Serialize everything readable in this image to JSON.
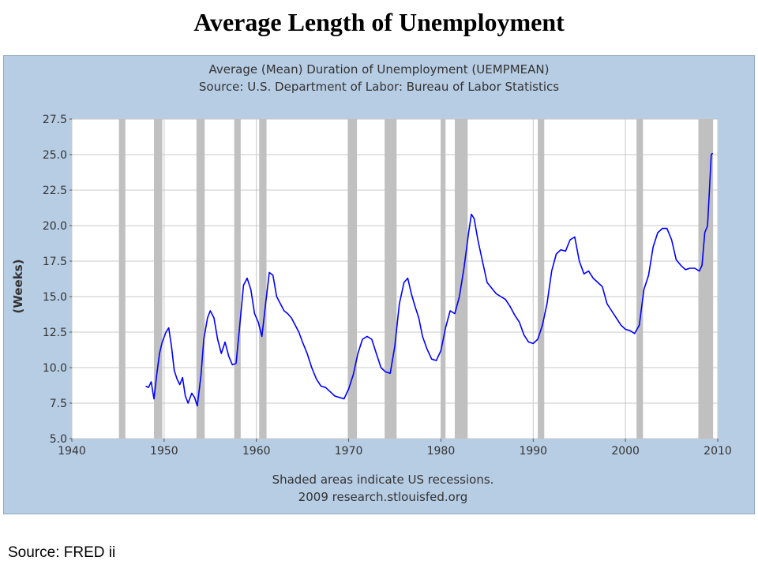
{
  "slide_title": "Average Length of Unemployment",
  "source_note": "Source: FRED ii",
  "colors": {
    "frame_background": "#b7cde4",
    "plot_background": "#ffffff",
    "series_line": "#0000ff",
    "recession_band": "#c0c0c0",
    "grid": "#c8c8c8"
  },
  "chart_data": {
    "type": "line",
    "title": "Average (Mean) Duration of Unemployment (UEMPMEAN)",
    "subtitle": "Source: U.S. Department of Labor: Bureau of Labor Statistics",
    "xlabel": "",
    "ylabel": "(Weeks)",
    "xlim": [
      1940,
      2010
    ],
    "ylim": [
      5.0,
      27.5
    ],
    "x_ticks": [
      "1940",
      "1950",
      "1960",
      "1970",
      "1980",
      "1990",
      "2000",
      "2010"
    ],
    "y_ticks": [
      "5.0",
      "7.5",
      "10.0",
      "12.5",
      "15.0",
      "17.5",
      "20.0",
      "22.5",
      "25.0",
      "27.5"
    ],
    "grid": true,
    "footnotes": [
      "Shaded areas indicate US recessions.",
      "2009 research.stlouisfed.org"
    ],
    "recessions": [
      [
        1945.1,
        1945.8
      ],
      [
        1948.9,
        1949.8
      ],
      [
        1953.5,
        1954.4
      ],
      [
        1957.6,
        1958.3
      ],
      [
        1960.3,
        1961.1
      ],
      [
        1969.9,
        1970.9
      ],
      [
        1973.9,
        1975.2
      ],
      [
        1980.0,
        1980.5
      ],
      [
        1981.5,
        1982.9
      ],
      [
        1990.5,
        1991.2
      ],
      [
        2001.2,
        2001.9
      ],
      [
        2007.9,
        2009.5
      ]
    ],
    "series": [
      {
        "values": [
          [
            1948.0,
            8.7
          ],
          [
            1948.3,
            8.6
          ],
          [
            1948.6,
            9.0
          ],
          [
            1948.8,
            8.2
          ],
          [
            1948.9,
            7.8
          ],
          [
            1949.2,
            9.5
          ],
          [
            1949.5,
            11.0
          ],
          [
            1949.8,
            11.8
          ],
          [
            1950.2,
            12.5
          ],
          [
            1950.5,
            12.8
          ],
          [
            1950.8,
            11.5
          ],
          [
            1951.1,
            9.8
          ],
          [
            1951.4,
            9.2
          ],
          [
            1951.7,
            8.8
          ],
          [
            1952.0,
            9.3
          ],
          [
            1952.3,
            8.0
          ],
          [
            1952.6,
            7.5
          ],
          [
            1953.0,
            8.2
          ],
          [
            1953.3,
            7.9
          ],
          [
            1953.6,
            7.3
          ],
          [
            1954.0,
            9.5
          ],
          [
            1954.3,
            12.0
          ],
          [
            1954.7,
            13.5
          ],
          [
            1955.0,
            14.0
          ],
          [
            1955.4,
            13.5
          ],
          [
            1955.8,
            12.0
          ],
          [
            1956.2,
            11.0
          ],
          [
            1956.6,
            11.8
          ],
          [
            1957.0,
            10.8
          ],
          [
            1957.4,
            10.2
          ],
          [
            1957.8,
            10.3
          ],
          [
            1958.2,
            13.0
          ],
          [
            1958.6,
            15.8
          ],
          [
            1959.0,
            16.3
          ],
          [
            1959.4,
            15.5
          ],
          [
            1959.8,
            13.8
          ],
          [
            1960.2,
            13.2
          ],
          [
            1960.6,
            12.2
          ],
          [
            1961.0,
            14.5
          ],
          [
            1961.4,
            16.7
          ],
          [
            1961.8,
            16.5
          ],
          [
            1962.2,
            15.0
          ],
          [
            1962.6,
            14.5
          ],
          [
            1963.0,
            14.0
          ],
          [
            1963.4,
            13.8
          ],
          [
            1963.8,
            13.5
          ],
          [
            1964.2,
            13.0
          ],
          [
            1964.6,
            12.5
          ],
          [
            1965.0,
            11.8
          ],
          [
            1965.5,
            11.0
          ],
          [
            1966.0,
            10.0
          ],
          [
            1966.5,
            9.2
          ],
          [
            1967.0,
            8.7
          ],
          [
            1967.5,
            8.6
          ],
          [
            1968.0,
            8.3
          ],
          [
            1968.5,
            8.0
          ],
          [
            1969.0,
            7.9
          ],
          [
            1969.5,
            7.8
          ],
          [
            1970.0,
            8.5
          ],
          [
            1970.5,
            9.5
          ],
          [
            1971.0,
            11.0
          ],
          [
            1971.5,
            12.0
          ],
          [
            1972.0,
            12.2
          ],
          [
            1972.5,
            12.0
          ],
          [
            1973.0,
            11.0
          ],
          [
            1973.5,
            10.0
          ],
          [
            1974.0,
            9.7
          ],
          [
            1974.5,
            9.6
          ],
          [
            1975.0,
            11.5
          ],
          [
            1975.5,
            14.5
          ],
          [
            1976.0,
            16.0
          ],
          [
            1976.4,
            16.3
          ],
          [
            1976.8,
            15.2
          ],
          [
            1977.2,
            14.3
          ],
          [
            1977.6,
            13.5
          ],
          [
            1978.0,
            12.2
          ],
          [
            1978.5,
            11.3
          ],
          [
            1979.0,
            10.6
          ],
          [
            1979.5,
            10.5
          ],
          [
            1980.0,
            11.2
          ],
          [
            1980.5,
            12.8
          ],
          [
            1981.0,
            14.0
          ],
          [
            1981.5,
            13.8
          ],
          [
            1982.0,
            15.0
          ],
          [
            1982.5,
            17.0
          ],
          [
            1983.0,
            19.5
          ],
          [
            1983.3,
            20.8
          ],
          [
            1983.6,
            20.5
          ],
          [
            1984.0,
            19.0
          ],
          [
            1984.5,
            17.5
          ],
          [
            1985.0,
            16.0
          ],
          [
            1985.5,
            15.6
          ],
          [
            1986.0,
            15.2
          ],
          [
            1986.5,
            15.0
          ],
          [
            1987.0,
            14.8
          ],
          [
            1987.5,
            14.3
          ],
          [
            1988.0,
            13.7
          ],
          [
            1988.5,
            13.2
          ],
          [
            1989.0,
            12.3
          ],
          [
            1989.5,
            11.8
          ],
          [
            1990.0,
            11.7
          ],
          [
            1990.5,
            12.0
          ],
          [
            1991.0,
            13.0
          ],
          [
            1991.5,
            14.5
          ],
          [
            1992.0,
            16.8
          ],
          [
            1992.5,
            18.0
          ],
          [
            1993.0,
            18.3
          ],
          [
            1993.5,
            18.2
          ],
          [
            1994.0,
            19.0
          ],
          [
            1994.5,
            19.2
          ],
          [
            1995.0,
            17.5
          ],
          [
            1995.5,
            16.6
          ],
          [
            1996.0,
            16.8
          ],
          [
            1996.5,
            16.3
          ],
          [
            1997.0,
            16.0
          ],
          [
            1997.5,
            15.7
          ],
          [
            1998.0,
            14.5
          ],
          [
            1998.5,
            14.0
          ],
          [
            1999.0,
            13.5
          ],
          [
            1999.5,
            13.0
          ],
          [
            2000.0,
            12.7
          ],
          [
            2000.5,
            12.6
          ],
          [
            2001.0,
            12.4
          ],
          [
            2001.5,
            13.0
          ],
          [
            2002.0,
            15.5
          ],
          [
            2002.5,
            16.5
          ],
          [
            2003.0,
            18.5
          ],
          [
            2003.5,
            19.5
          ],
          [
            2004.0,
            19.8
          ],
          [
            2004.5,
            19.8
          ],
          [
            2005.0,
            19.0
          ],
          [
            2005.5,
            17.6
          ],
          [
            2006.0,
            17.2
          ],
          [
            2006.5,
            16.9
          ],
          [
            2007.0,
            17.0
          ],
          [
            2007.5,
            17.0
          ],
          [
            2008.0,
            16.8
          ],
          [
            2008.3,
            17.2
          ],
          [
            2008.6,
            19.5
          ],
          [
            2008.9,
            20.0
          ],
          [
            2009.1,
            22.5
          ],
          [
            2009.3,
            25.0
          ],
          [
            2009.45,
            25.1
          ]
        ]
      }
    ]
  }
}
